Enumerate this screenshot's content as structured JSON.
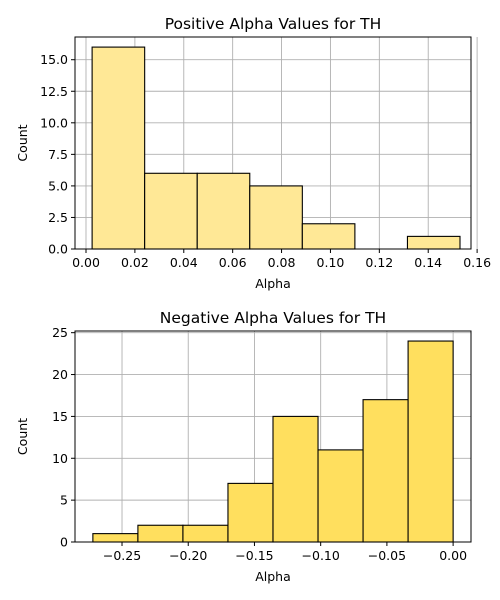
{
  "chart_data": [
    {
      "type": "bar",
      "title": "Positive Alpha Values for TH",
      "xlabel": "Alpha",
      "ylabel": "Count",
      "xlim": [
        -0.0045,
        0.1575
      ],
      "ylim": [
        0,
        16.8
      ],
      "xticks": [
        0.0,
        0.02,
        0.04,
        0.06,
        0.08,
        0.1,
        0.12,
        0.14,
        0.16
      ],
      "xtick_labels": [
        "0.00",
        "0.02",
        "0.04",
        "0.06",
        "0.08",
        "0.10",
        "0.12",
        "0.14",
        "0.16"
      ],
      "yticks": [
        0,
        2.5,
        5,
        7.5,
        10,
        12.5,
        15
      ],
      "ytick_labels": [
        "0.0",
        "2.5",
        "5.0",
        "7.5",
        "10.0",
        "12.5",
        "15.0"
      ],
      "grid": true,
      "bins": [
        {
          "x0": 0.0025,
          "x1": 0.024,
          "count": 16
        },
        {
          "x0": 0.024,
          "x1": 0.0455,
          "count": 6
        },
        {
          "x0": 0.0455,
          "x1": 0.067,
          "count": 6
        },
        {
          "x0": 0.067,
          "x1": 0.0885,
          "count": 5
        },
        {
          "x0": 0.0885,
          "x1": 0.11,
          "count": 2
        },
        {
          "x0": 0.11,
          "x1": 0.1315,
          "count": 0
        },
        {
          "x0": 0.1315,
          "x1": 0.153,
          "count": 1
        }
      ],
      "color": "#FFE896",
      "edge_color": "#000000"
    },
    {
      "type": "bar",
      "title": "Negative Alpha Values for TH",
      "xlabel": "Alpha",
      "ylabel": "Count",
      "xlim": [
        -0.2855,
        0.0135
      ],
      "ylim": [
        0,
        25.2
      ],
      "xticks": [
        -0.25,
        -0.2,
        -0.15,
        -0.1,
        -0.05,
        0.0
      ],
      "xtick_labels": [
        "−0.25",
        "−0.20",
        "−0.15",
        "−0.10",
        "−0.05",
        "0.00"
      ],
      "yticks": [
        0,
        5,
        10,
        15,
        20,
        25
      ],
      "ytick_labels": [
        "0",
        "5",
        "10",
        "15",
        "20",
        "25"
      ],
      "grid": true,
      "bins": [
        {
          "x0": -0.272,
          "x1": -0.238,
          "count": 1
        },
        {
          "x0": -0.238,
          "x1": -0.204,
          "count": 2
        },
        {
          "x0": -0.204,
          "x1": -0.17,
          "count": 2
        },
        {
          "x0": -0.17,
          "x1": -0.136,
          "count": 7
        },
        {
          "x0": -0.136,
          "x1": -0.102,
          "count": 15
        },
        {
          "x0": -0.102,
          "x1": -0.068,
          "count": 11
        },
        {
          "x0": -0.068,
          "x1": -0.034,
          "count": 17
        },
        {
          "x0": -0.034,
          "x1": 0.0,
          "count": 24
        }
      ],
      "color": "#FFDF5E",
      "edge_color": "#000000"
    }
  ]
}
